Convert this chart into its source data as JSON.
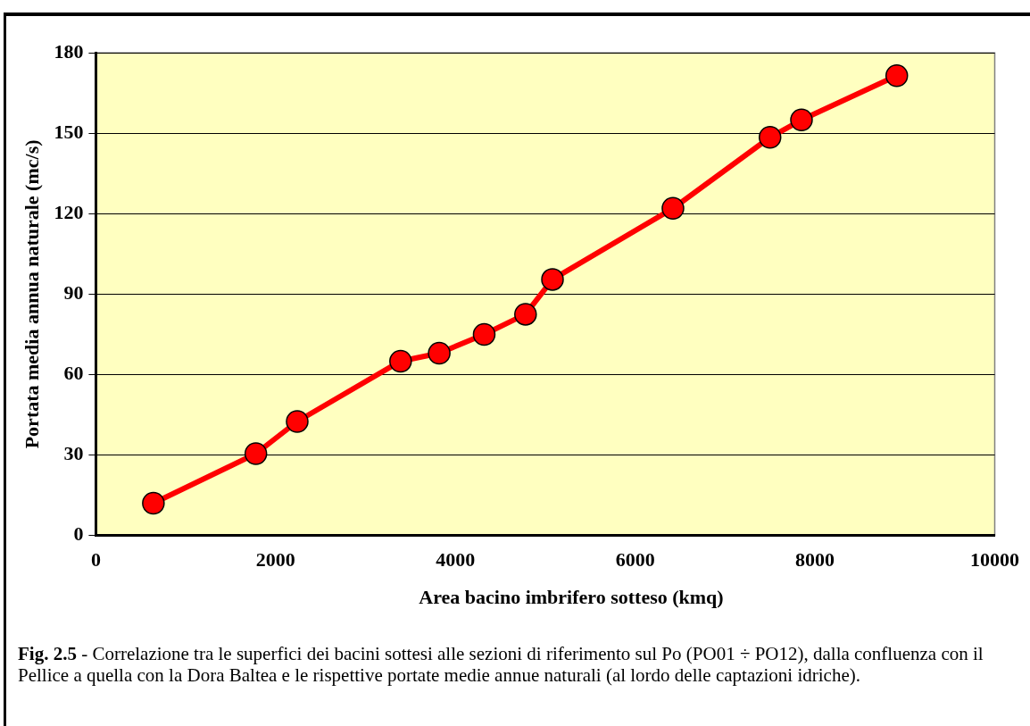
{
  "chart_data": {
    "type": "line",
    "xlabel": "Area bacino imbrifero sotteso (kmq)",
    "ylabel": "Portata media annua naturale (mc/s)",
    "annotations": [
      "Fig. 2.5 - Correlazione tra le superfici dei bacini sottesi alle sezioni di riferimento sul Po (PO01 ÷ PO12), dalla confluenza con il Pellice a quella con la Dora Baltea e le rispettive portate medie annue naturali (al lordo delle captazioni idriche)."
    ],
    "x": [
      640,
      1780,
      2240,
      3390,
      3820,
      4320,
      4780,
      5080,
      6420,
      7500,
      7850,
      8910
    ],
    "series": [
      {
        "color": "#ff0000",
        "values": [
          12,
          30.5,
          42.5,
          65,
          68,
          75,
          82.5,
          95.5,
          122,
          148.5,
          155,
          171.5
        ]
      }
    ],
    "xlim": [
      0,
      10000
    ],
    "xticks": [
      0,
      2000,
      4000,
      6000,
      8000,
      10000
    ],
    "ylim": [
      0,
      180
    ],
    "yticks": [
      0,
      30,
      60,
      90,
      120,
      150,
      180
    ],
    "grid": "y",
    "legend": false,
    "marker": "circle",
    "line_style": "solid"
  }
}
